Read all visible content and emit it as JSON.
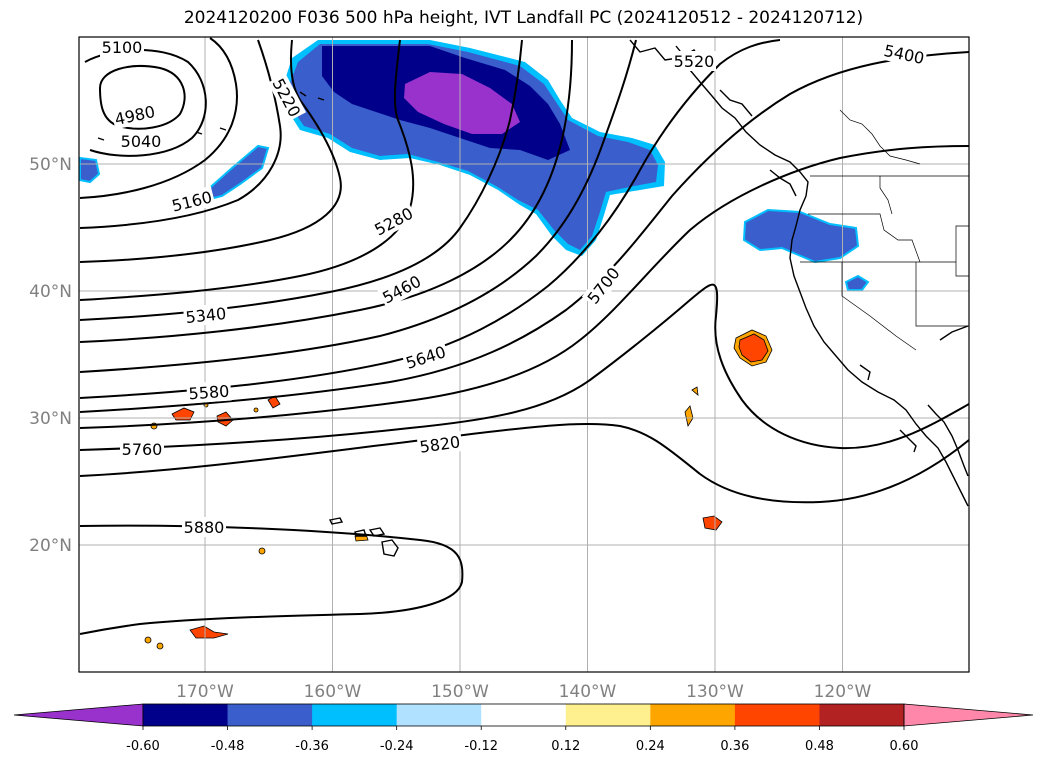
{
  "title": "2024120200 F036 500 hPa height, IVT Landfall PC (2024120512 - 2024120712)",
  "lat_ticks": [
    {
      "lat": 50,
      "label": "50°N"
    },
    {
      "lat": 40,
      "label": "40°N"
    },
    {
      "lat": 30,
      "label": "30°N"
    },
    {
      "lat": 20,
      "label": "20°N"
    }
  ],
  "lon_ticks": [
    {
      "lon": -170,
      "label": "170°W"
    },
    {
      "lon": -160,
      "label": "160°W"
    },
    {
      "lon": -150,
      "label": "150°W"
    },
    {
      "lon": -140,
      "label": "140°W"
    },
    {
      "lon": -130,
      "label": "130°W"
    },
    {
      "lon": -120,
      "label": "120°W"
    }
  ],
  "contour_labels": [
    "5100",
    "4980",
    "5040",
    "5160",
    "5220",
    "5280",
    "5340",
    "5460",
    "5400",
    "5520",
    "5580",
    "5640",
    "5700",
    "5760",
    "5820",
    "5880"
  ],
  "colorbar": {
    "ticks": [
      "-0.60",
      "-0.48",
      "-0.36",
      "-0.24",
      "-0.12",
      "0.12",
      "0.24",
      "0.36",
      "0.48",
      "0.60"
    ],
    "colors": [
      "#9932cc",
      "#00008b",
      "#3a5fcd",
      "#00bfff",
      "#b0e2ff",
      "#ffffff",
      "#fff08f",
      "#ffa500",
      "#ff4500",
      "#b22222",
      "#ff88aa"
    ]
  }
}
